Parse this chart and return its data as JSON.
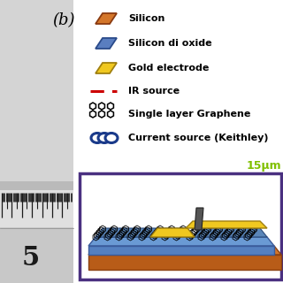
{
  "panel_b_label": "(b)",
  "legend_items": [
    {
      "label": "Silicon",
      "color": "#c8622a",
      "type": "rect_tilted"
    },
    {
      "label": "Silicon di oxide",
      "color": "#5a7ec0",
      "type": "rect_tilted"
    },
    {
      "label": "Gold electrode",
      "color": "#f0c820",
      "type": "rect_tilted"
    },
    {
      "label": "IR source",
      "color": "#cc0000",
      "type": "dashed"
    },
    {
      "label": "Single layer Graphene",
      "color": "#000000",
      "type": "hexagon"
    },
    {
      "label": "Current source (Keithley)",
      "color": "#1a3a8a",
      "type": "circles"
    }
  ],
  "green_text": "15μm",
  "green_color": "#80c000",
  "diagram_border_color": "#4a3080",
  "silicon_color": "#d4762a",
  "sio2_color": "#6a9ad4",
  "gold_color": "#f0c820",
  "graphene_bg_color": "#5a85b8",
  "graphene_hex_color": "#000000",
  "left_bg_top": "#d8d8d8",
  "left_bg_bottom": "#c0c0c0",
  "ruler_tick_color": "#1a1a1a",
  "ruler_number_color": "#1a1a1a",
  "ruler_separator_color": "#555555"
}
